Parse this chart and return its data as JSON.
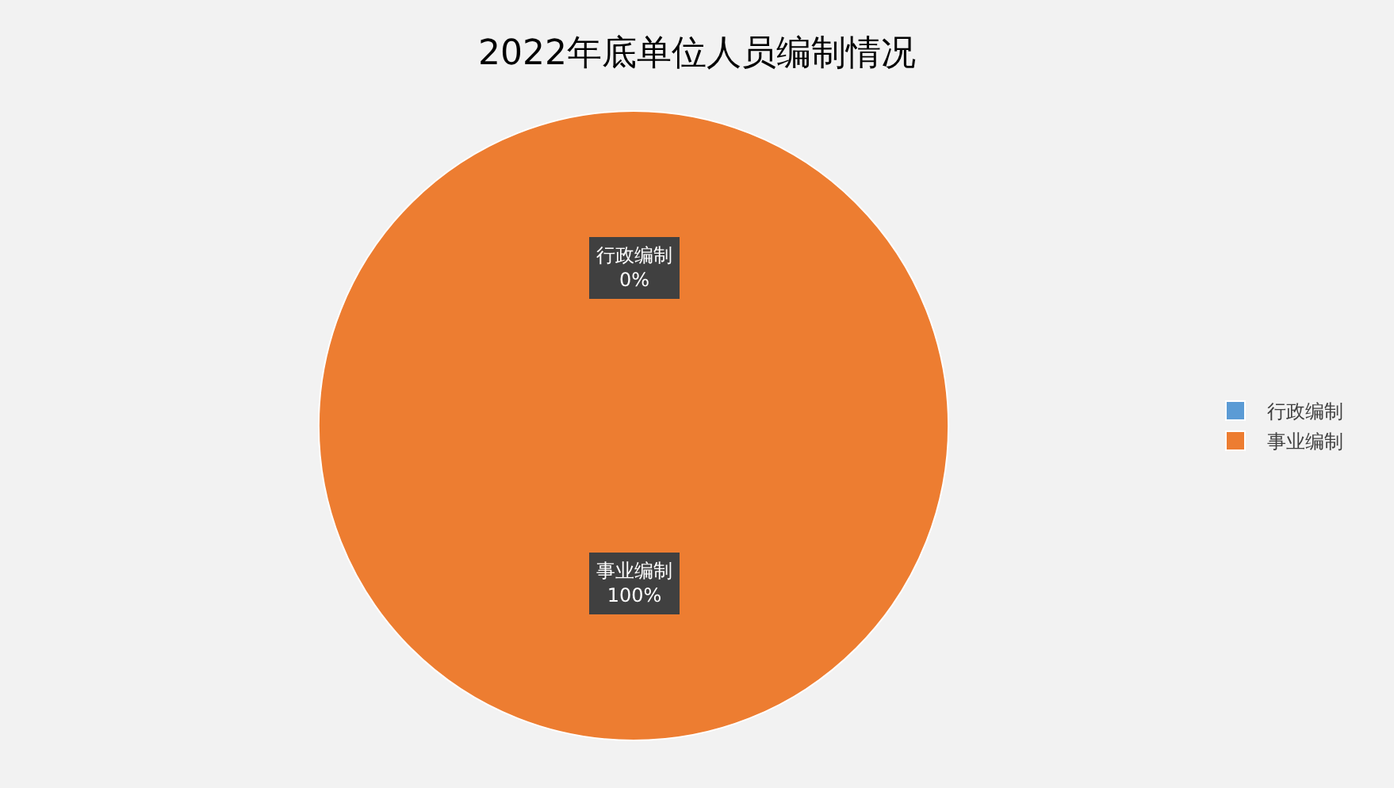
{
  "chart_data": {
    "type": "pie",
    "title": "2022年底单位人员编制情况",
    "categories": [
      "行政编制",
      "事业编制"
    ],
    "values": [
      0,
      100
    ],
    "colors": [
      "#5b9bd5",
      "#ed7d31"
    ],
    "value_labels": [
      "0%",
      "100%"
    ],
    "legend": "right"
  }
}
